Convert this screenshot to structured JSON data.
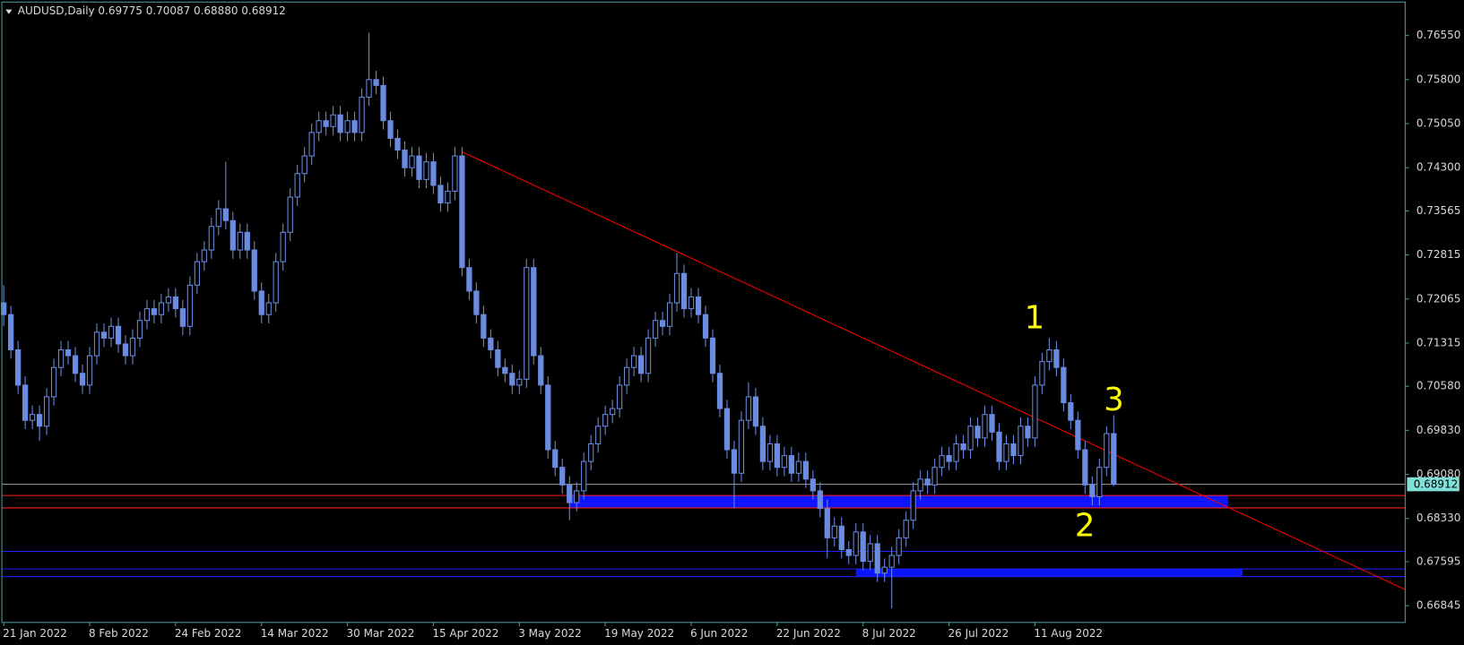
{
  "chart_data": {
    "type": "candlestick",
    "title": "AUDUSD,Daily  0.69775 0.70087 0.68880 0.68912",
    "background": "#000000",
    "candle_color": "#6a8be0",
    "categories": [
      "21 Jan 2022",
      null,
      null,
      null,
      null,
      null,
      null,
      null,
      null,
      null,
      null,
      null,
      "8 Feb 2022",
      null,
      null,
      null,
      null,
      null,
      null,
      null,
      null,
      null,
      null,
      null,
      "24 Feb 2022",
      null,
      null,
      null,
      null,
      null,
      null,
      null,
      null,
      null,
      null,
      null,
      "14 Mar 2022",
      null,
      null,
      null,
      null,
      null,
      null,
      null,
      null,
      null,
      null,
      null,
      "30 Mar 2022",
      null,
      null,
      null,
      null,
      null,
      null,
      null,
      null,
      null,
      null,
      null,
      "15 Apr 2022",
      null,
      null,
      null,
      null,
      null,
      null,
      null,
      null,
      null,
      null,
      null,
      "3 May 2022",
      null,
      null,
      null,
      null,
      null,
      null,
      null,
      null,
      null,
      null,
      null,
      "19 May 2022",
      null,
      null,
      null,
      null,
      null,
      null,
      null,
      null,
      null,
      null,
      null,
      "6 Jun 2022",
      null,
      null,
      null,
      null,
      null,
      null,
      null,
      null,
      null,
      null,
      null,
      "22 Jun 2022",
      null,
      null,
      null,
      null,
      null,
      null,
      null,
      null,
      null,
      null,
      null,
      "8 Jul 2022",
      null,
      null,
      null,
      null,
      null,
      null,
      null,
      null,
      null,
      null,
      null,
      "26 Jul 2022",
      null,
      null,
      null,
      null,
      null,
      null,
      null,
      null,
      null,
      null,
      null,
      "11 Aug 2022",
      null,
      null,
      null,
      null,
      null,
      null,
      null,
      null,
      null,
      null,
      null
    ],
    "open": [
      0.72,
      0.718,
      0.712,
      0.706,
      0.7,
      0.701,
      0.699,
      0.704,
      0.709,
      0.712,
      0.711,
      0.708,
      0.706,
      0.711,
      0.715,
      0.714,
      0.716,
      0.713,
      0.711,
      0.714,
      0.717,
      0.719,
      0.718,
      0.72,
      0.721,
      0.719,
      0.716,
      0.723,
      0.727,
      0.729,
      0.733,
      0.736,
      0.734,
      0.729,
      0.732,
      0.729,
      0.722,
      0.718,
      0.72,
      0.727,
      0.732,
      0.738,
      0.742,
      0.745,
      0.749,
      0.751,
      0.75,
      0.752,
      0.749,
      0.751,
      0.749,
      0.755,
      0.758,
      0.757,
      0.751,
      0.748,
      0.746,
      0.743,
      0.745,
      0.741,
      0.744,
      0.74,
      0.737,
      0.739,
      0.745,
      0.726,
      0.722,
      0.718,
      0.714,
      0.712,
      0.709,
      0.708,
      0.706,
      0.707,
      0.726,
      0.711,
      0.706,
      0.695,
      0.692,
      0.689,
      0.686,
      0.688,
      0.693,
      0.696,
      0.699,
      0.701,
      0.702,
      0.706,
      0.709,
      0.711,
      0.708,
      0.714,
      0.717,
      0.716,
      0.72,
      0.725,
      0.719,
      0.721,
      0.718,
      0.714,
      0.708,
      0.702,
      0.695,
      0.691,
      0.7,
      0.704,
      0.699,
      0.693,
      0.696,
      0.692,
      0.694,
      0.691,
      0.693,
      0.69,
      0.688,
      0.685,
      0.68,
      0.682,
      0.678,
      0.677,
      0.681,
      0.676,
      0.679,
      0.674,
      0.675,
      0.677,
      0.68,
      0.683,
      0.688,
      0.69,
      0.689,
      0.692,
      0.694,
      0.693,
      0.696,
      0.695,
      0.699,
      0.697,
      0.701,
      0.698,
      0.693,
      0.696,
      0.694,
      0.699,
      0.697,
      0.706,
      0.71,
      0.712,
      0.709,
      0.703,
      0.7,
      0.695,
      0.689,
      0.687,
      0.692,
      0.69775
    ],
    "high": [
      0.723,
      0.7195,
      0.7135,
      0.7075,
      0.7025,
      0.7025,
      0.7055,
      0.7105,
      0.7135,
      0.7135,
      0.7125,
      0.7095,
      0.7125,
      0.7165,
      0.7165,
      0.7175,
      0.7175,
      0.7145,
      0.7155,
      0.7185,
      0.7205,
      0.7205,
      0.7215,
      0.7225,
      0.7225,
      0.7205,
      0.7245,
      0.7285,
      0.7305,
      0.7345,
      0.7375,
      0.744,
      0.7355,
      0.7335,
      0.7335,
      0.7305,
      0.7235,
      0.7215,
      0.7285,
      0.7335,
      0.7395,
      0.7435,
      0.7465,
      0.7505,
      0.7525,
      0.7525,
      0.7535,
      0.7535,
      0.7525,
      0.7525,
      0.7565,
      0.766,
      0.7595,
      0.7585,
      0.7525,
      0.7495,
      0.7475,
      0.7465,
      0.7465,
      0.7455,
      0.7455,
      0.7415,
      0.7405,
      0.7465,
      0.7465,
      0.7275,
      0.7235,
      0.7195,
      0.7155,
      0.7135,
      0.7105,
      0.7095,
      0.7085,
      0.7275,
      0.7275,
      0.7125,
      0.7075,
      0.6965,
      0.6935,
      0.6905,
      0.6895,
      0.6945,
      0.6975,
      0.7005,
      0.7025,
      0.7035,
      0.7075,
      0.7105,
      0.7125,
      0.7125,
      0.7155,
      0.7185,
      0.7185,
      0.7215,
      0.7285,
      0.7265,
      0.7225,
      0.7225,
      0.7195,
      0.7155,
      0.7095,
      0.7035,
      0.6965,
      0.7015,
      0.7065,
      0.7055,
      0.7005,
      0.6975,
      0.6975,
      0.6955,
      0.6955,
      0.6945,
      0.6945,
      0.6915,
      0.6895,
      0.6865,
      0.6835,
      0.6835,
      0.6795,
      0.6825,
      0.6825,
      0.6805,
      0.6805,
      0.6765,
      0.6785,
      0.6815,
      0.6845,
      0.6895,
      0.6915,
      0.6915,
      0.6935,
      0.6955,
      0.6955,
      0.6975,
      0.6975,
      0.7005,
      0.7005,
      0.7025,
      0.7025,
      0.6995,
      0.6975,
      0.6975,
      0.7005,
      0.7005,
      0.7075,
      0.7115,
      0.714,
      0.7135,
      0.7105,
      0.7045,
      0.7015,
      0.6965,
      0.6905,
      0.6935,
      0.699,
      0.70087
    ],
    "low": [
      0.716,
      0.7105,
      0.7045,
      0.6985,
      0.6985,
      0.6965,
      0.6975,
      0.7025,
      0.7075,
      0.7095,
      0.7065,
      0.7045,
      0.7045,
      0.7095,
      0.7125,
      0.7125,
      0.7115,
      0.7095,
      0.7095,
      0.7125,
      0.7155,
      0.7165,
      0.7165,
      0.7185,
      0.7175,
      0.7145,
      0.7145,
      0.7215,
      0.7255,
      0.7275,
      0.7315,
      0.7325,
      0.7275,
      0.7275,
      0.7275,
      0.7205,
      0.7165,
      0.7165,
      0.7185,
      0.7255,
      0.7305,
      0.7365,
      0.7405,
      0.7435,
      0.7475,
      0.7485,
      0.7485,
      0.7475,
      0.7475,
      0.7475,
      0.7475,
      0.7535,
      0.7555,
      0.7495,
      0.7465,
      0.7445,
      0.7415,
      0.7415,
      0.7395,
      0.7395,
      0.7385,
      0.7355,
      0.7355,
      0.7375,
      0.7245,
      0.7205,
      0.7165,
      0.7125,
      0.7105,
      0.7075,
      0.7065,
      0.7045,
      0.7045,
      0.7055,
      0.7095,
      0.7045,
      0.6935,
      0.6905,
      0.6875,
      0.683,
      0.6845,
      0.6865,
      0.6915,
      0.6945,
      0.6975,
      0.6995,
      0.7005,
      0.7045,
      0.7075,
      0.7065,
      0.7065,
      0.7125,
      0.7145,
      0.7145,
      0.7185,
      0.7175,
      0.7175,
      0.7165,
      0.7125,
      0.7065,
      0.7005,
      0.6935,
      0.685,
      0.6895,
      0.6985,
      0.6975,
      0.6915,
      0.6915,
      0.6905,
      0.6905,
      0.6895,
      0.6895,
      0.6885,
      0.6865,
      0.6835,
      0.6765,
      0.6785,
      0.6765,
      0.6755,
      0.6755,
      0.6745,
      0.6745,
      0.6725,
      0.6725,
      0.668,
      0.6755,
      0.6785,
      0.6815,
      0.6865,
      0.6875,
      0.6875,
      0.6905,
      0.6915,
      0.6915,
      0.6935,
      0.6935,
      0.6955,
      0.6955,
      0.6965,
      0.6915,
      0.6915,
      0.6925,
      0.6925,
      0.6955,
      0.6955,
      0.7045,
      0.7085,
      0.7075,
      0.7015,
      0.6985,
      0.6935,
      0.6875,
      0.6855,
      0.6855,
      0.6905,
      0.6888
    ],
    "close": [
      0.718,
      0.712,
      0.706,
      0.7,
      0.701,
      0.699,
      0.704,
      0.709,
      0.712,
      0.711,
      0.708,
      0.706,
      0.711,
      0.715,
      0.714,
      0.716,
      0.713,
      0.711,
      0.714,
      0.717,
      0.719,
      0.718,
      0.72,
      0.721,
      0.719,
      0.716,
      0.723,
      0.727,
      0.729,
      0.733,
      0.736,
      0.734,
      0.729,
      0.732,
      0.729,
      0.722,
      0.718,
      0.72,
      0.727,
      0.732,
      0.738,
      0.742,
      0.745,
      0.749,
      0.751,
      0.75,
      0.752,
      0.749,
      0.751,
      0.749,
      0.755,
      0.758,
      0.757,
      0.751,
      0.748,
      0.746,
      0.743,
      0.745,
      0.741,
      0.744,
      0.74,
      0.737,
      0.739,
      0.745,
      0.726,
      0.722,
      0.718,
      0.714,
      0.712,
      0.709,
      0.708,
      0.706,
      0.707,
      0.726,
      0.711,
      0.706,
      0.695,
      0.692,
      0.689,
      0.686,
      0.688,
      0.693,
      0.696,
      0.699,
      0.701,
      0.702,
      0.706,
      0.709,
      0.711,
      0.708,
      0.714,
      0.717,
      0.716,
      0.72,
      0.725,
      0.719,
      0.721,
      0.718,
      0.714,
      0.708,
      0.702,
      0.695,
      0.691,
      0.7,
      0.704,
      0.699,
      0.693,
      0.696,
      0.692,
      0.694,
      0.691,
      0.693,
      0.69,
      0.688,
      0.685,
      0.68,
      0.682,
      0.678,
      0.677,
      0.681,
      0.676,
      0.679,
      0.674,
      0.675,
      0.677,
      0.68,
      0.683,
      0.688,
      0.69,
      0.689,
      0.692,
      0.694,
      0.693,
      0.696,
      0.695,
      0.699,
      0.697,
      0.701,
      0.698,
      0.693,
      0.696,
      0.694,
      0.699,
      0.697,
      0.706,
      0.71,
      0.712,
      0.709,
      0.703,
      0.7,
      0.695,
      0.689,
      0.687,
      0.692,
      0.69775,
      0.68912
    ],
    "ylim": [
      0.6656,
      0.7712
    ],
    "yticks": [
      {
        "value": 0.7655,
        "label": "0.76550"
      },
      {
        "value": 0.758,
        "label": "0.75800"
      },
      {
        "value": 0.7505,
        "label": "0.75050"
      },
      {
        "value": 0.743,
        "label": "0.74300"
      },
      0.73565,
      0.72815,
      0.72065,
      0.71315,
      {
        "value": 0.7058,
        "label": "0.70580"
      },
      {
        "value": 0.6983,
        "label": "0.69830"
      },
      {
        "value": 0.6908,
        "label": "0.69080"
      },
      {
        "value": 0.6833,
        "label": "0.68330"
      },
      0.67595,
      0.66845
    ],
    "levels": [
      {
        "value": 0.6872,
        "color": "#ff2020"
      },
      {
        "value": 0.6851,
        "color": "#ff2020"
      },
      {
        "value": 0.6777,
        "color": "#2020ff"
      },
      {
        "value": 0.6747,
        "color": "#2020ff"
      },
      {
        "value": 0.6734,
        "color": "#2020ff"
      }
    ],
    "zones": [
      {
        "from": 0.6851,
        "to": 0.6872,
        "start": 79,
        "end": 171,
        "color": "#0a14ff"
      },
      {
        "from": 0.6734,
        "to": 0.6747,
        "start": 119,
        "end": 173,
        "color": "#0a14ff"
      }
    ],
    "trendline": {
      "color": "#ff0000",
      "from": {
        "x": 64,
        "y": 0.7457
      },
      "to": {
        "x": 195.7,
        "y": 0.6712
      }
    },
    "annotations": [
      "1",
      "2",
      "3"
    ],
    "annotation_color": "#ffff00"
  }
}
